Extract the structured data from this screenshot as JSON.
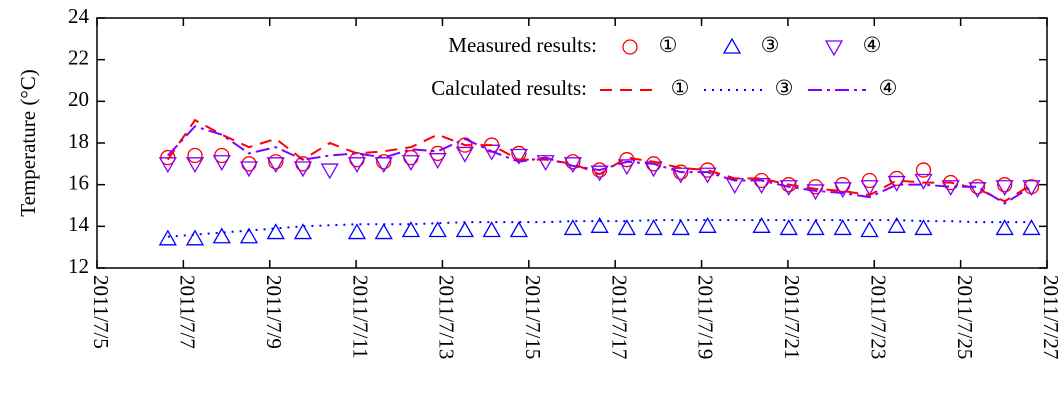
{
  "chart_data": {
    "type": "line",
    "y_label": "Temperature (°C)",
    "xlim": [
      0,
      22
    ],
    "ylim": [
      12,
      24
    ],
    "yticks": [
      12,
      14,
      16,
      18,
      20,
      22,
      24
    ],
    "xticks": [
      {
        "value": 0,
        "label": "2011/7/5"
      },
      {
        "value": 2,
        "label": "2011/7/7"
      },
      {
        "value": 4,
        "label": "2011/7/9"
      },
      {
        "value": 6,
        "label": "2011/7/11"
      },
      {
        "value": 8,
        "label": "2011/7/13"
      },
      {
        "value": 10,
        "label": "2011/7/15"
      },
      {
        "value": 12,
        "label": "2011/7/17"
      },
      {
        "value": 14,
        "label": "2011/7/19"
      },
      {
        "value": 16,
        "label": "2011/7/21"
      },
      {
        "value": 18,
        "label": "2011/7/23"
      },
      {
        "value": 20,
        "label": "2011/7/25"
      },
      {
        "value": 22,
        "label": "2011/7/27"
      }
    ],
    "x": [
      1.64,
      2.27,
      2.89,
      3.52,
      4.14,
      4.77,
      5.39,
      6.02,
      6.64,
      7.27,
      7.89,
      8.52,
      9.14,
      9.77,
      10.39,
      11.02,
      11.64,
      12.27,
      12.89,
      13.52,
      14.14,
      14.77,
      15.39,
      16.02,
      16.64,
      17.27,
      17.89,
      18.52,
      19.14,
      19.77,
      20.39,
      21.02,
      21.64
    ],
    "series_groups": [
      {
        "title": "Measured results:",
        "series": [
          {
            "name": "①",
            "color": "#ff0000",
            "marker": "circle",
            "values": [
              17.3,
              17.4,
              17.4,
              17.0,
              17.1,
              17.0,
              null,
              17.2,
              17.1,
              17.3,
              17.5,
              17.9,
              17.9,
              17.5,
              null,
              17.1,
              16.7,
              17.2,
              17.0,
              16.6,
              16.7,
              null,
              16.2,
              16.0,
              15.9,
              16.0,
              16.2,
              16.3,
              16.7,
              16.1,
              15.9,
              16.0,
              15.9
            ]
          },
          {
            "name": "③",
            "color": "#0000ff",
            "marker": "triangle-up",
            "values": [
              13.4,
              13.4,
              13.5,
              13.5,
              13.7,
              13.7,
              null,
              13.7,
              13.7,
              13.8,
              13.8,
              13.8,
              13.8,
              13.8,
              null,
              13.9,
              14.0,
              13.9,
              13.9,
              13.9,
              14.0,
              null,
              14.0,
              13.9,
              13.9,
              13.9,
              13.8,
              14.0,
              13.9,
              null,
              null,
              13.9,
              13.9
            ]
          },
          {
            "name": "④",
            "color": "#8000ff",
            "marker": "triangle-down",
            "values": [
              17.0,
              17.0,
              17.1,
              16.8,
              17.0,
              16.8,
              16.7,
              17.0,
              17.0,
              17.1,
              17.2,
              17.5,
              17.6,
              17.4,
              17.1,
              17.0,
              16.6,
              16.9,
              16.8,
              16.5,
              16.5,
              16.0,
              16.0,
              15.9,
              15.7,
              15.8,
              15.9,
              16.1,
              16.2,
              15.9,
              15.8,
              15.9,
              15.9
            ]
          }
        ]
      },
      {
        "title": "Calculated results:",
        "series": [
          {
            "name": "①",
            "color": "#ff0000",
            "dash": "dashed",
            "values": [
              17.2,
              19.1,
              18.4,
              17.8,
              18.2,
              17.2,
              18.0,
              17.5,
              17.6,
              17.8,
              18.4,
              17.9,
              17.9,
              17.2,
              17.2,
              17.0,
              16.5,
              17.3,
              17.1,
              16.8,
              16.7,
              16.3,
              16.3,
              16.0,
              15.8,
              15.7,
              15.5,
              16.2,
              16.1,
              16.1,
              15.8,
              15.2,
              16.0
            ]
          },
          {
            "name": "③",
            "color": "#0000ff",
            "dash": "dotted",
            "values": [
              13.5,
              13.6,
              13.7,
              13.8,
              13.9,
              14.0,
              14.05,
              14.1,
              14.1,
              14.1,
              14.15,
              14.2,
              14.2,
              14.2,
              14.2,
              14.25,
              14.25,
              14.25,
              14.3,
              14.3,
              14.3,
              14.3,
              14.3,
              14.3,
              14.3,
              14.3,
              14.3,
              14.3,
              14.25,
              14.25,
              14.2,
              14.2,
              14.2
            ]
          },
          {
            "name": "④",
            "color": "#8000ff",
            "dash": "dashdot",
            "values": [
              17.4,
              18.8,
              18.4,
              17.5,
              17.8,
              17.2,
              17.4,
              17.5,
              17.3,
              17.7,
              17.6,
              18.2,
              17.6,
              17.1,
              17.3,
              16.9,
              16.7,
              17.1,
              17.0,
              16.6,
              16.6,
              16.2,
              16.2,
              15.9,
              15.7,
              15.6,
              15.4,
              16.0,
              16.0,
              15.9,
              15.9,
              15.1,
              15.9
            ]
          }
        ]
      }
    ]
  }
}
